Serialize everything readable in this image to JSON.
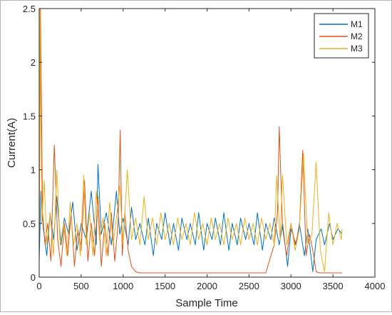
{
  "chart_data": {
    "type": "line",
    "title": "",
    "xlabel": "Sample Time",
    "ylabel": "Current(A)",
    "xlim": [
      0,
      4000
    ],
    "ylim": [
      0,
      2.5
    ],
    "xticks": [
      0,
      500,
      1000,
      1500,
      2000,
      2500,
      3000,
      3500,
      4000
    ],
    "yticks": [
      0,
      0.5,
      1,
      1.5,
      2,
      2.5
    ],
    "xtick_labels": [
      "0",
      "500",
      "1000",
      "1500",
      "2000",
      "2500",
      "3000",
      "3500",
      "4000"
    ],
    "ytick_labels": [
      "0",
      "0.5",
      "1",
      "1.5",
      "2",
      "2.5"
    ],
    "grid": false,
    "legend_position": "top-right",
    "series": [
      {
        "name": "M1",
        "color": "#0072BD",
        "x": [
          0,
          20,
          50,
          90,
          130,
          170,
          210,
          260,
          300,
          350,
          400,
          450,
          500,
          560,
          620,
          680,
          700,
          740,
          800,
          860,
          920,
          960,
          1000,
          1060,
          1100,
          1150,
          1200,
          1260,
          1300,
          1360,
          1400,
          1460,
          1500,
          1560,
          1600,
          1660,
          1700,
          1760,
          1800,
          1860,
          1900,
          1960,
          2000,
          2060,
          2100,
          2160,
          2200,
          2260,
          2300,
          2360,
          2400,
          2460,
          2500,
          2560,
          2600,
          2660,
          2700,
          2760,
          2800,
          2860,
          2900,
          2960,
          3000,
          3060,
          3100,
          3160,
          3200,
          3260,
          3300,
          3360,
          3400,
          3460,
          3500,
          3560,
          3610
        ],
        "y": [
          0.15,
          0.8,
          0.45,
          0.2,
          0.6,
          0.35,
          0.75,
          0.3,
          0.55,
          0.4,
          0.7,
          0.25,
          0.5,
          0.35,
          0.8,
          0.3,
          1.05,
          0.4,
          0.6,
          0.3,
          0.8,
          0.4,
          0.55,
          0.3,
          0.65,
          0.35,
          0.5,
          0.3,
          0.55,
          0.2,
          0.5,
          0.35,
          0.6,
          0.3,
          0.5,
          0.25,
          0.55,
          0.35,
          0.5,
          0.3,
          0.6,
          0.25,
          0.5,
          0.35,
          0.55,
          0.3,
          0.6,
          0.25,
          0.5,
          0.3,
          0.55,
          0.35,
          0.5,
          0.3,
          0.6,
          0.25,
          0.5,
          0.35,
          0.55,
          0.3,
          0.5,
          0.1,
          0.45,
          0.3,
          0.5,
          0.2,
          0.45,
          0.05,
          0.35,
          0.45,
          0.3,
          0.5,
          0.35,
          0.45,
          0.4
        ]
      },
      {
        "name": "M2",
        "color": "#D95319",
        "x": [
          0,
          15,
          40,
          70,
          100,
          140,
          180,
          220,
          260,
          300,
          340,
          380,
          420,
          460,
          500,
          540,
          580,
          620,
          660,
          700,
          740,
          780,
          820,
          860,
          900,
          940,
          965,
          990,
          1020,
          1060,
          1100,
          1150,
          1200,
          1300,
          1400,
          1500,
          1600,
          1700,
          1800,
          1900,
          2000,
          2100,
          2200,
          2300,
          2400,
          2500,
          2600,
          2700,
          2800,
          2840,
          2860,
          2900,
          2950,
          3000,
          3050,
          3100,
          3140,
          3180,
          3220,
          3260,
          3300,
          3340,
          3400,
          3500,
          3610
        ],
        "y": [
          0.3,
          2.5,
          0.6,
          0.3,
          0.5,
          0.15,
          1.23,
          0.35,
          0.1,
          0.5,
          0.2,
          0.6,
          0.1,
          0.45,
          0.25,
          0.9,
          0.15,
          0.5,
          0.2,
          0.75,
          0.1,
          0.5,
          0.2,
          0.6,
          0.15,
          0.5,
          1.37,
          0.2,
          0.6,
          0.25,
          0.1,
          0.05,
          0.04,
          0.04,
          0.04,
          0.04,
          0.04,
          0.04,
          0.04,
          0.04,
          0.04,
          0.04,
          0.04,
          0.04,
          0.04,
          0.04,
          0.04,
          0.04,
          0.3,
          0.6,
          1.4,
          0.45,
          0.2,
          0.5,
          0.3,
          0.45,
          1.18,
          0.2,
          0.4,
          0.25,
          0.05,
          0.04,
          0.04,
          0.04,
          0.04
        ]
      },
      {
        "name": "M3",
        "color": "#EDB120",
        "x": [
          0,
          10,
          30,
          60,
          90,
          130,
          170,
          210,
          250,
          290,
          330,
          370,
          410,
          450,
          490,
          530,
          560,
          600,
          640,
          680,
          720,
          760,
          800,
          840,
          880,
          920,
          960,
          1000,
          1050,
          1100,
          1150,
          1200,
          1250,
          1300,
          1350,
          1400,
          1450,
          1500,
          1550,
          1600,
          1650,
          1700,
          1750,
          1800,
          1850,
          1900,
          1950,
          2000,
          2050,
          2100,
          2150,
          2200,
          2250,
          2300,
          2350,
          2400,
          2450,
          2500,
          2550,
          2600,
          2650,
          2700,
          2750,
          2800,
          2830,
          2870,
          2900,
          2950,
          3000,
          3050,
          3100,
          3150,
          3200,
          3250,
          3300,
          3350,
          3400,
          3450,
          3500,
          3550,
          3600,
          3610
        ],
        "y": [
          0.2,
          2.5,
          0.5,
          0.9,
          0.3,
          0.6,
          0.2,
          1.0,
          0.3,
          0.5,
          0.2,
          0.7,
          0.3,
          0.5,
          0.2,
          0.95,
          0.3,
          0.6,
          0.2,
          0.8,
          0.35,
          0.55,
          0.2,
          0.7,
          0.3,
          0.55,
          0.85,
          0.3,
          1.0,
          0.35,
          0.55,
          0.3,
          0.75,
          0.35,
          0.55,
          0.3,
          0.6,
          0.35,
          0.5,
          0.3,
          0.55,
          0.35,
          0.5,
          0.3,
          0.6,
          0.35,
          0.5,
          0.3,
          0.55,
          0.35,
          0.5,
          0.3,
          0.55,
          0.35,
          0.5,
          0.3,
          0.55,
          0.35,
          0.5,
          0.3,
          0.55,
          0.35,
          0.5,
          0.3,
          0.95,
          0.35,
          0.95,
          0.3,
          0.5,
          0.25,
          0.45,
          1.15,
          0.3,
          0.4,
          1.07,
          0.25,
          0.05,
          0.6,
          0.3,
          0.5,
          0.35,
          0.45
        ]
      }
    ]
  }
}
